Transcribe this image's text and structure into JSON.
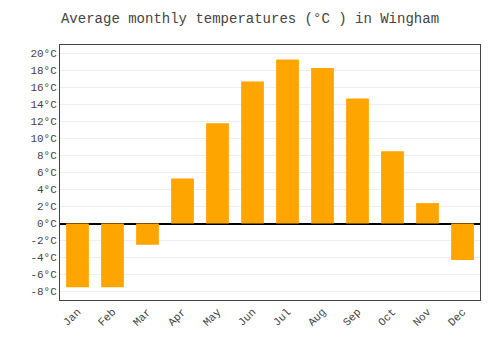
{
  "chart_data": {
    "type": "bar",
    "title": "Average monthly temperatures (°C ) in Wingham",
    "categories": [
      "Jan",
      "Feb",
      "Mar",
      "Apr",
      "May",
      "Jun",
      "Jul",
      "Aug",
      "Sep",
      "Oct",
      "Nov",
      "Dec"
    ],
    "values": [
      -7.5,
      -7.5,
      -2.5,
      5.3,
      11.8,
      16.7,
      19.3,
      18.3,
      14.7,
      8.5,
      2.4,
      -4.3
    ],
    "color": "#FFA500",
    "ylim": [
      -9,
      21
    ],
    "yticks": [
      {
        "value": -8,
        "label": "-8°C"
      },
      {
        "value": -6,
        "label": "-6°C"
      },
      {
        "value": -4,
        "label": "-4°C"
      },
      {
        "value": -2,
        "label": "-2°C"
      },
      {
        "value": 0,
        "label": "0°C"
      },
      {
        "value": 2,
        "label": "2°C"
      },
      {
        "value": 4,
        "label": "4°C"
      },
      {
        "value": 6,
        "label": "6°C"
      },
      {
        "value": 8,
        "label": "8°C"
      },
      {
        "value": 10,
        "label": "10°C"
      },
      {
        "value": 12,
        "label": "12°C"
      },
      {
        "value": 14,
        "label": "14°C"
      },
      {
        "value": 16,
        "label": "16°C"
      },
      {
        "value": 18,
        "label": "18°C"
      },
      {
        "value": 20,
        "label": "20°C"
      }
    ],
    "grid": true
  }
}
